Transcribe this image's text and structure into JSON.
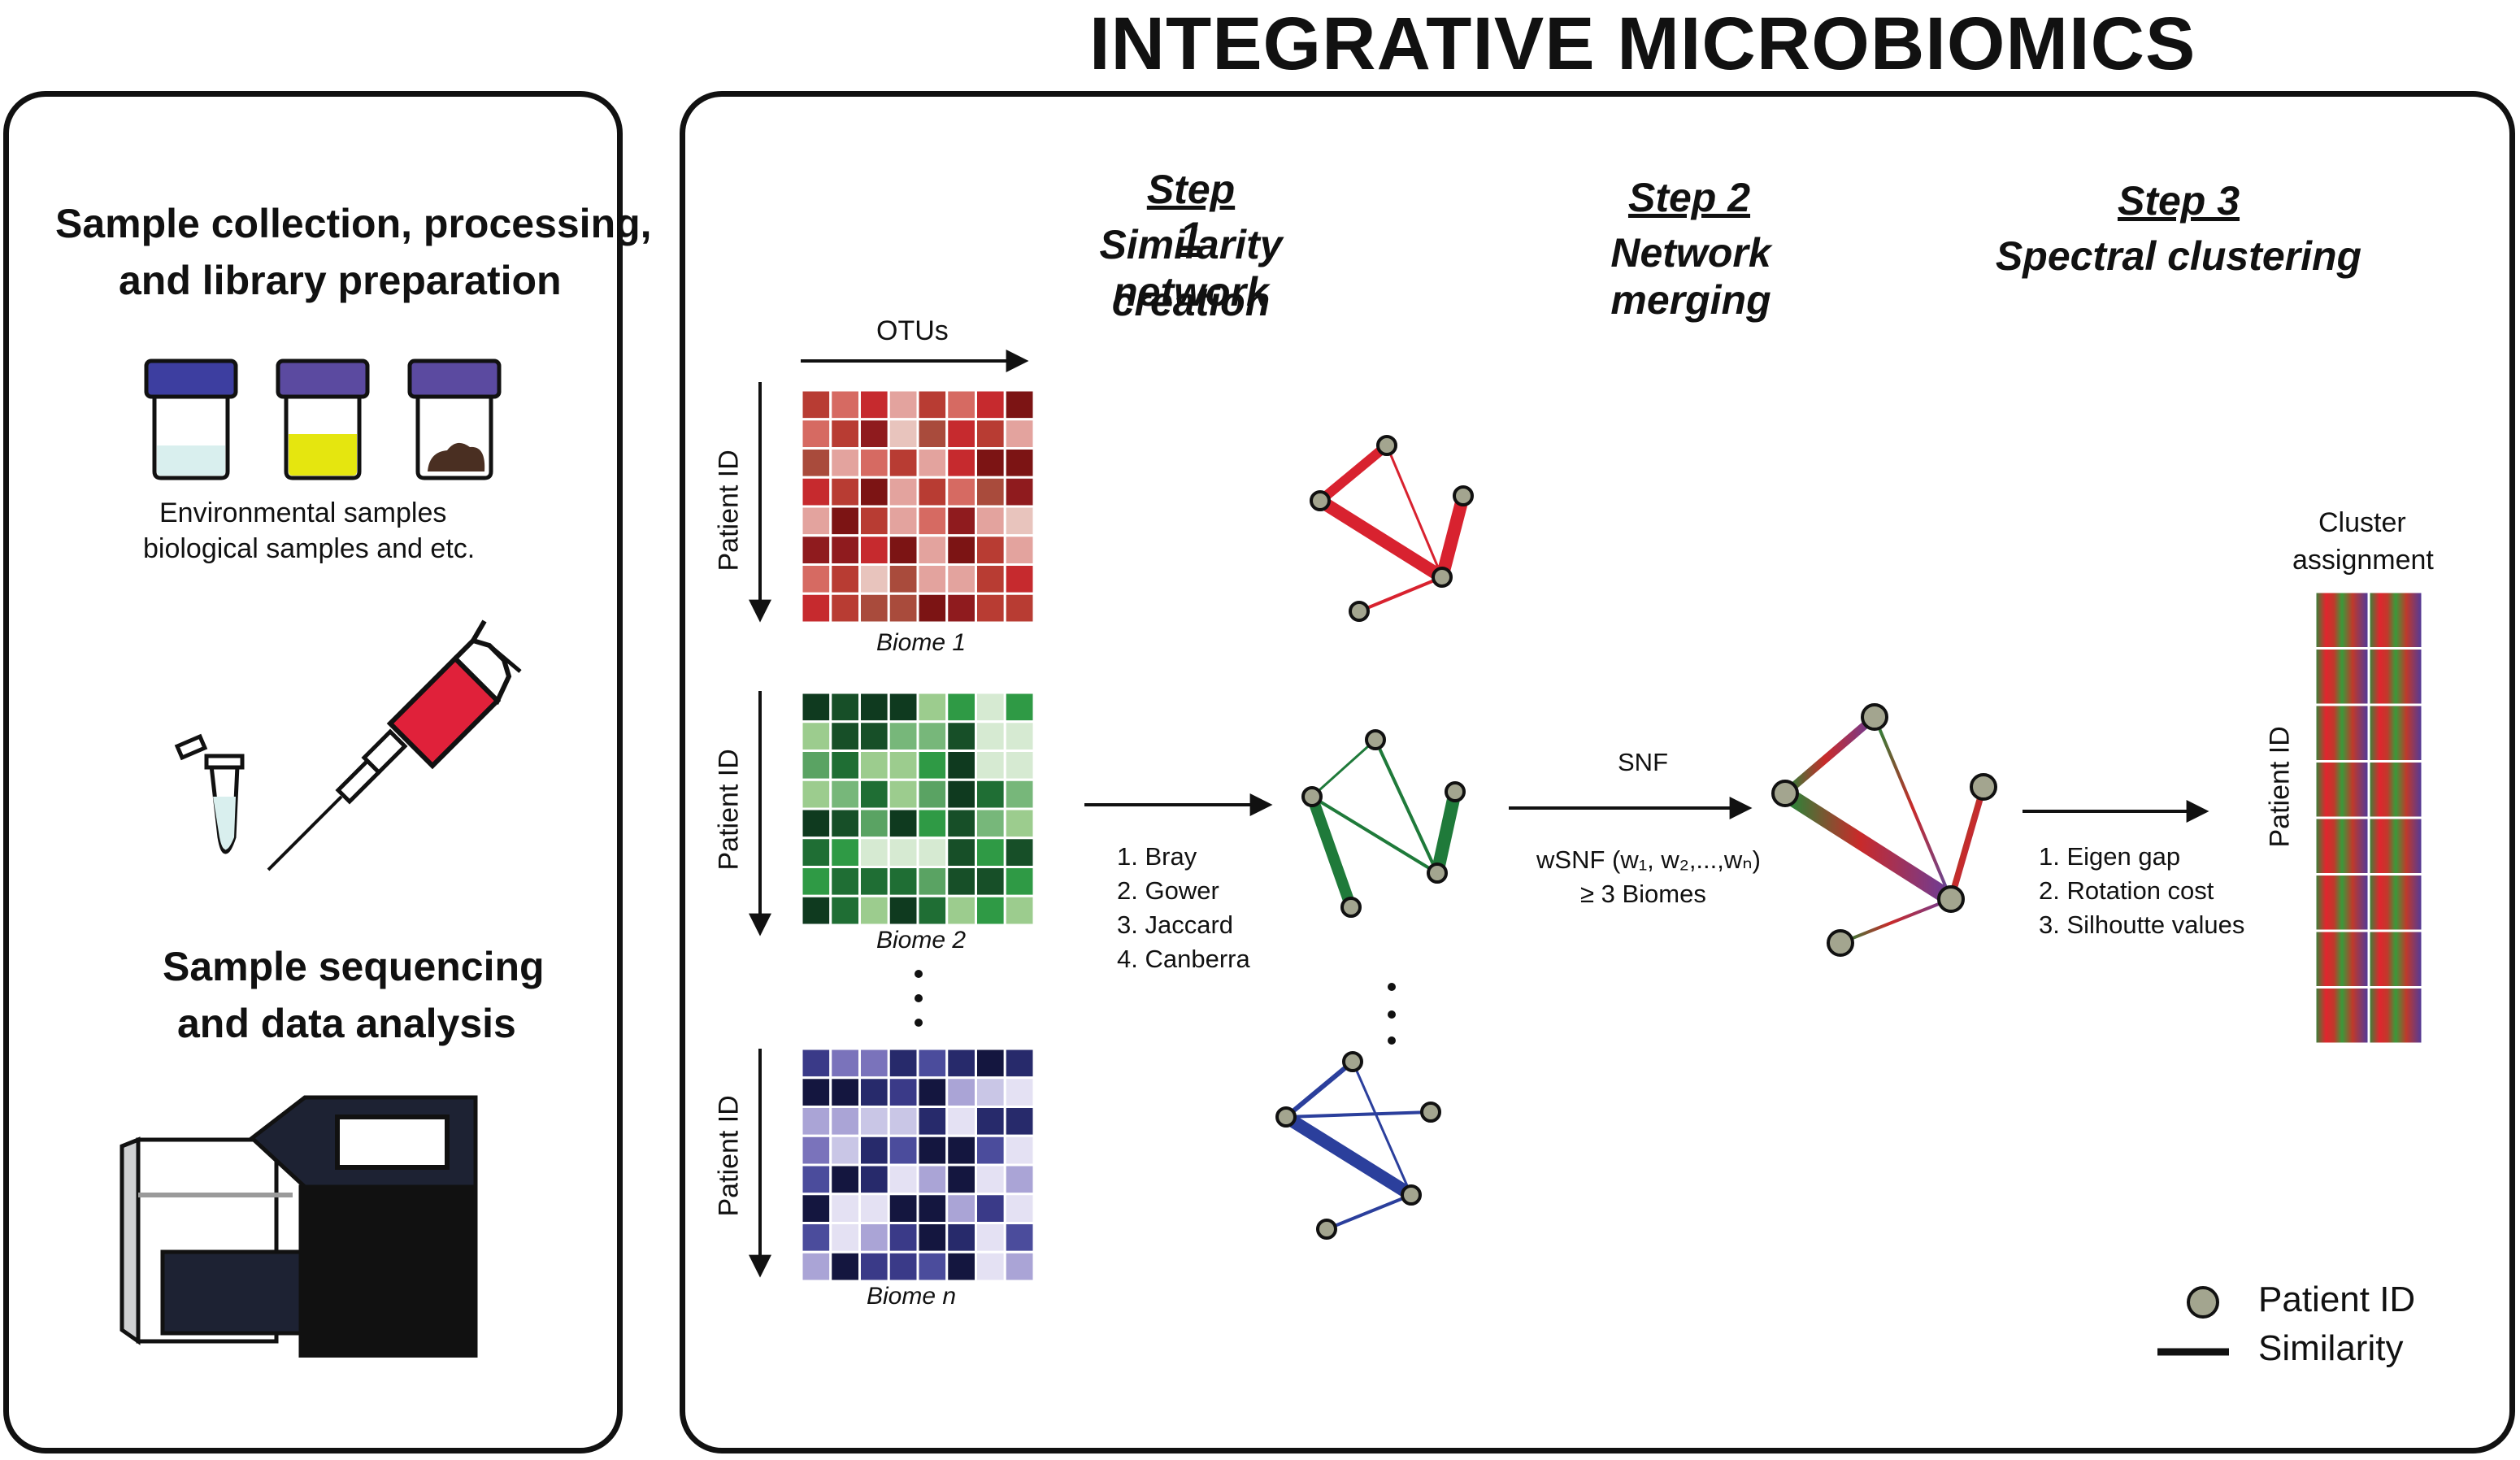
{
  "title": "INTEGRATIVE MICROBIOMICS",
  "left_panel": {
    "heading_1_line1": "Sample collection,  processing,",
    "heading_1_line2": "and library preparation",
    "samples_line1": "Environmental samples",
    "samples_line2": "biological samples and etc.",
    "heading_2_line1": "Sample sequencing",
    "heading_2_line2": "and data analysis"
  },
  "steps": {
    "step1_label": "Step 1",
    "step1_line1": "Similarity network",
    "step1_line2": "creation",
    "step2_label": "Step 2",
    "step2_line1": "Network merging",
    "step3_label": "Step 3",
    "step3_line1": "Spectral clustering"
  },
  "matrices": {
    "otus_label": "OTUs",
    "patient_id_label": "Patient ID",
    "biome1_caption": "Biome 1",
    "biome2_caption": "Biome 2",
    "biomen_caption": "Biome  n"
  },
  "methods": [
    "1. Bray",
    "2. Gower",
    "3. Jaccard",
    "4. Canberra"
  ],
  "merging": {
    "snf_label": "SNF",
    "wsnf_label": "wSNF (w₁, w₂,...,wₙ)",
    "biomes_note": "≥ 3 Biomes"
  },
  "clustering_criteria": [
    "1. Eigen gap",
    "2. Rotation cost",
    "3. Silhoutte values"
  ],
  "cluster": {
    "title_line1": "Cluster",
    "title_line2": "assignment",
    "patient_id_label": "Patient ID"
  },
  "legend": {
    "node_label": "Patient ID",
    "edge_label": "Similarity"
  },
  "colors": {
    "red": "#d8222f",
    "green": "#1f7a3a",
    "blue": "#2b3f9c",
    "node_fill": "#a3a58f",
    "sample_cap": "#3d3ea0",
    "sample_cap_2": "#5b4aa0",
    "pipette_red": "#e0213a",
    "sequencer_dark": "#1d2233"
  }
}
